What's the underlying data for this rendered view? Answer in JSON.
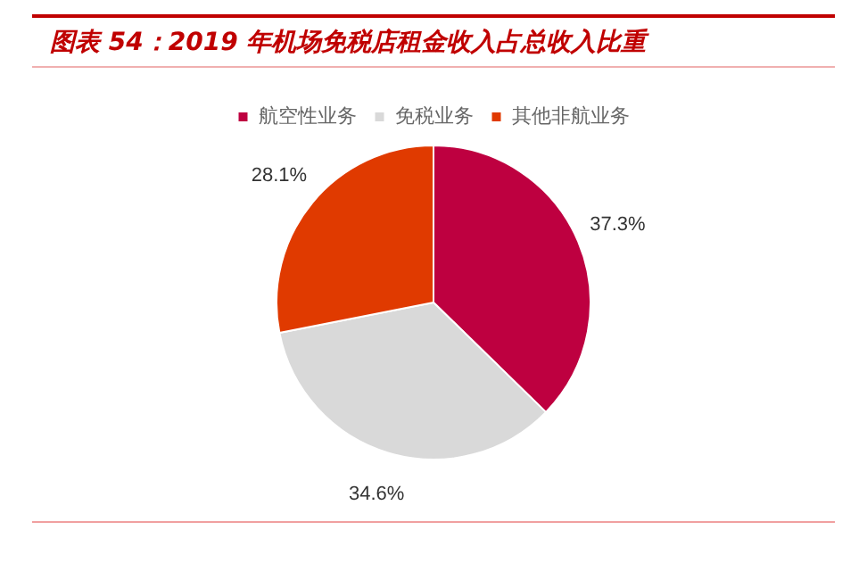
{
  "chart_data": {
    "type": "pie",
    "title": "图表 54：2019 年机场免税店租金收入占总收入比重",
    "categories": [
      "航空性业务",
      "免税业务",
      "其他非航业务"
    ],
    "values": [
      37.3,
      34.6,
      28.1
    ],
    "colors": [
      "#be0040",
      "#d9d9d9",
      "#e03a00"
    ],
    "value_labels": [
      "37.3%",
      "34.6%",
      "28.1%"
    ],
    "legend": "top"
  }
}
